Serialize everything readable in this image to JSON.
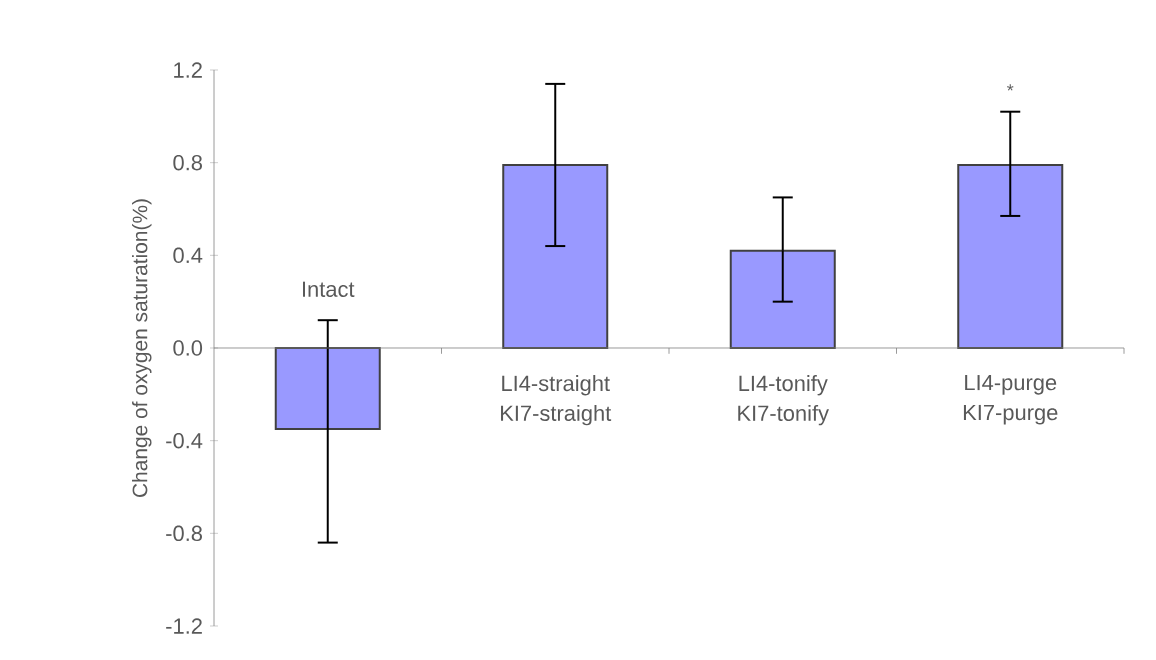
{
  "chart_data": {
    "type": "bar",
    "ylabel": "Change of oxygen saturation(%)",
    "categories": [
      "Intact",
      "LI4-straight KI7-straight",
      "LI4-tonify KI7-tonify",
      "LI4-purge KI7-purge"
    ],
    "values": [
      -0.35,
      0.79,
      0.42,
      0.79
    ],
    "errors": [
      [
        -0.84,
        0.12
      ],
      [
        0.44,
        1.14
      ],
      [
        0.2,
        0.65
      ],
      [
        0.57,
        1.02
      ]
    ],
    "color": "#9999ff",
    "ylim": [
      -1.2,
      1.2
    ],
    "yticks": [
      {
        "value": -1.2,
        "label": "-1.2"
      },
      {
        "value": -0.8,
        "label": "-0.8"
      },
      {
        "value": -0.4,
        "label": "-0.4"
      },
      {
        "value": 0,
        "label": "0.0"
      },
      {
        "value": 0.4,
        "label": "0.4"
      },
      {
        "value": 0.8,
        "label": "0.8"
      },
      {
        "value": 1.2,
        "label": "1.2"
      }
    ],
    "annotations": [
      "*"
    ]
  }
}
